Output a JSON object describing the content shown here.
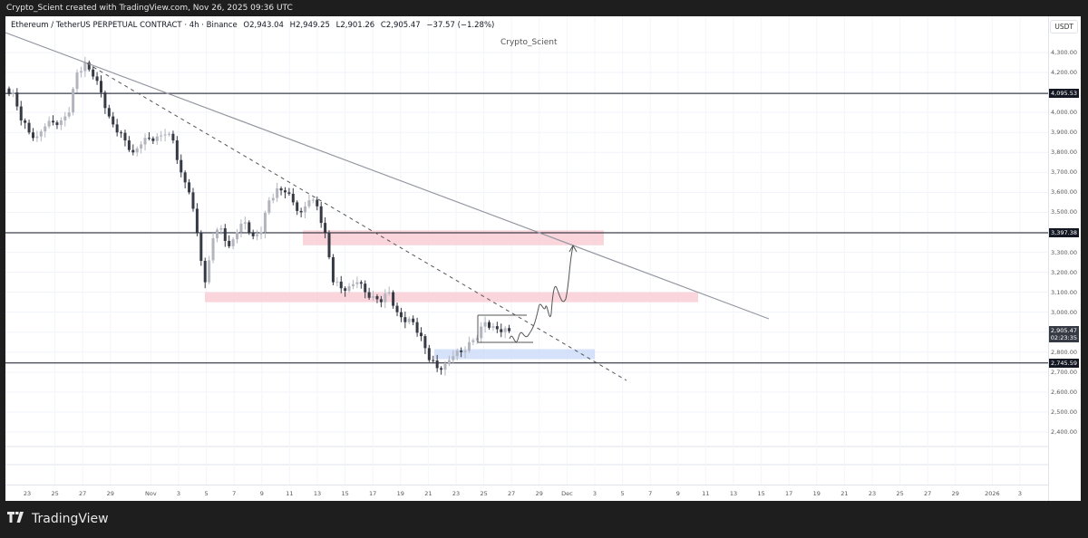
{
  "topbar": {
    "caption": "Crypto_Scient created with TradingView.com, Nov 26, 2025 09:36 UTC"
  },
  "legend": {
    "symbol": "Ethereum / TetherUS PERPETUAL CONTRACT · 4h · Binance",
    "open": "O2,943.04",
    "high": "H2,949.25",
    "low": "L2,901.26",
    "close": "C2,905.47",
    "change": "−37.57 (−1.28%)"
  },
  "watermark": "Crypto_Scient",
  "currency": "USDT",
  "footer": {
    "brand": "TradingView",
    "logo_icon": "tradingview-logo-icon"
  },
  "colors": {
    "background": "#ffffff",
    "frame": "#1e1e1e",
    "candle_up": "#b2b5be",
    "candle_down": "#363a45",
    "resistance_zone": "#f8c8d0",
    "support_zone": "#c8d8f8",
    "tag": "#131722"
  },
  "chart_data": {
    "type": "candlestick",
    "title": "Ethereum / TetherUS PERPETUAL CONTRACT · 4h · Binance",
    "ylabel": "USDT",
    "ylim": [
      2320,
      4390
    ],
    "y_ticks": [
      "4,300.00",
      "4,200.00",
      "4,000.00",
      "3,900.00",
      "3,800.00",
      "3,700.00",
      "3,600.00",
      "3,500.00",
      "3,300.00",
      "3,200.00",
      "3,100.00",
      "3,000.00",
      "2,800.00",
      "2,700.00",
      "2,600.00",
      "2,500.00",
      "2,400.00"
    ],
    "x_ticks": [
      "23",
      "25",
      "27",
      "29",
      "Nov",
      "3",
      "5",
      "7",
      "9",
      "11",
      "13",
      "15",
      "17",
      "19",
      "21",
      "23",
      "25",
      "27",
      "29",
      "Dec",
      "3",
      "5",
      "7",
      "9",
      "11",
      "13",
      "15",
      "17",
      "19",
      "21",
      "23",
      "25",
      "27",
      "29",
      "2026",
      "3"
    ],
    "price_tags": [
      {
        "label": "4,095.53",
        "value": 4095.53
      },
      {
        "label": "3,397.38",
        "value": 3397.38
      },
      {
        "label": "2,905.47",
        "sub": "02:23:35",
        "value": 2905.47,
        "current": true
      },
      {
        "label": "2,745.59",
        "value": 2745.59
      }
    ],
    "horizontal_lines": [
      4095.53,
      3397.38,
      2745.59
    ],
    "zones": [
      {
        "type": "resistance",
        "top": 3410,
        "bottom": 3335,
        "from": "Nov 12",
        "to": "Dec 4"
      },
      {
        "type": "resistance",
        "top": 3100,
        "bottom": 3050,
        "from": "Nov 4",
        "to": "Dec 10"
      },
      {
        "type": "support",
        "top": 2815,
        "bottom": 2765,
        "from": "Nov 21",
        "to": "Dec 4"
      }
    ],
    "trendlines": [
      {
        "style": "solid",
        "from": [
          0,
          4390
        ],
        "to": [
          840,
          2970
        ]
      },
      {
        "style": "dashed",
        "from": [
          90,
          4260
        ],
        "to": [
          685,
          2660
        ]
      }
    ],
    "approx_closes": [
      4100,
      3960,
      3900,
      3880,
      3930,
      3950,
      3960,
      4000,
      4200,
      4250,
      4180,
      4100,
      3980,
      3900,
      3860,
      3800,
      3840,
      3870,
      3880,
      3890,
      3860,
      3700,
      3600,
      3400,
      3150,
      3370,
      3420,
      3330,
      3400,
      3450,
      3380,
      3400,
      3560,
      3620,
      3600,
      3550,
      3500,
      3560,
      3530,
      3400,
      3150,
      3120,
      3130,
      3150,
      3100,
      3080,
      3050,
      3100,
      3000,
      2950,
      2950,
      2880,
      2760,
      2720,
      2740,
      2780,
      2800,
      2850,
      2870,
      2950,
      2930,
      2900,
      2905
    ],
    "projection": "Break above 2,950 range, pullback to ~3,080 zone, then rally toward 3,350 at trendline"
  }
}
